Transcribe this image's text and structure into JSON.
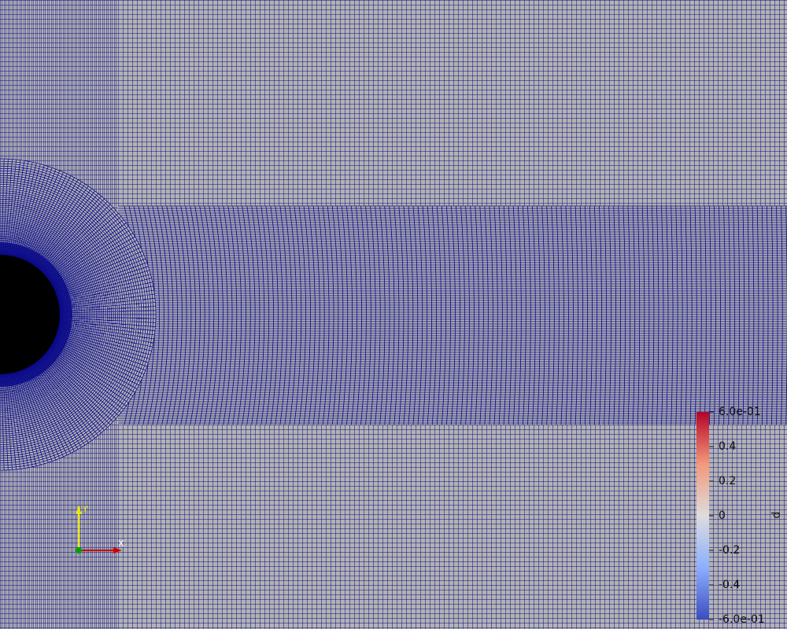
{
  "colorbar": {
    "title": "p",
    "range": [
      -0.6,
      0.6
    ],
    "ticks": [
      {
        "value": -0.6,
        "label": "-6.0e-01"
      },
      -0.4,
      -0.2,
      0,
      0.2,
      0.4,
      {
        "value": 0.6,
        "label": "6.0e-01"
      }
    ]
  },
  "axes": {
    "x": "X",
    "y": "Y"
  }
}
